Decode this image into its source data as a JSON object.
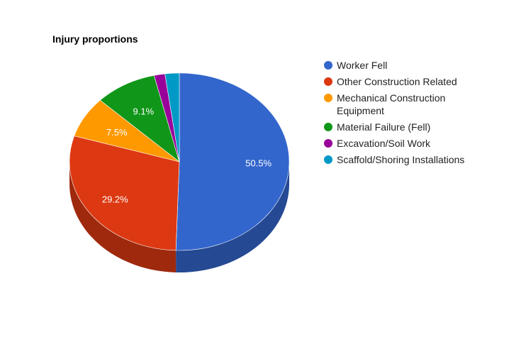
{
  "chart_data": {
    "type": "pie",
    "title": "Injury proportions",
    "is_3d": true,
    "legend_position": "right",
    "slices": [
      {
        "name": "Worker Fell",
        "value": 50.5,
        "label": "50.5%",
        "color": "#3366cc"
      },
      {
        "name": "Other Construction Related",
        "value": 29.2,
        "label": "29.2%",
        "color": "#dc3912"
      },
      {
        "name": "Mechanical Construction Equipment",
        "value": 7.5,
        "label": "7.5%",
        "color": "#ff9900"
      },
      {
        "name": "Material Failure (Fell)",
        "value": 9.1,
        "label": "9.1%",
        "color": "#109618"
      },
      {
        "name": "Excavation/Soil Work",
        "value": 1.6,
        "label": "",
        "color": "#990099"
      },
      {
        "name": "Scaffold/Shoring Installations",
        "value": 2.1,
        "label": "",
        "color": "#0099c6"
      }
    ]
  }
}
